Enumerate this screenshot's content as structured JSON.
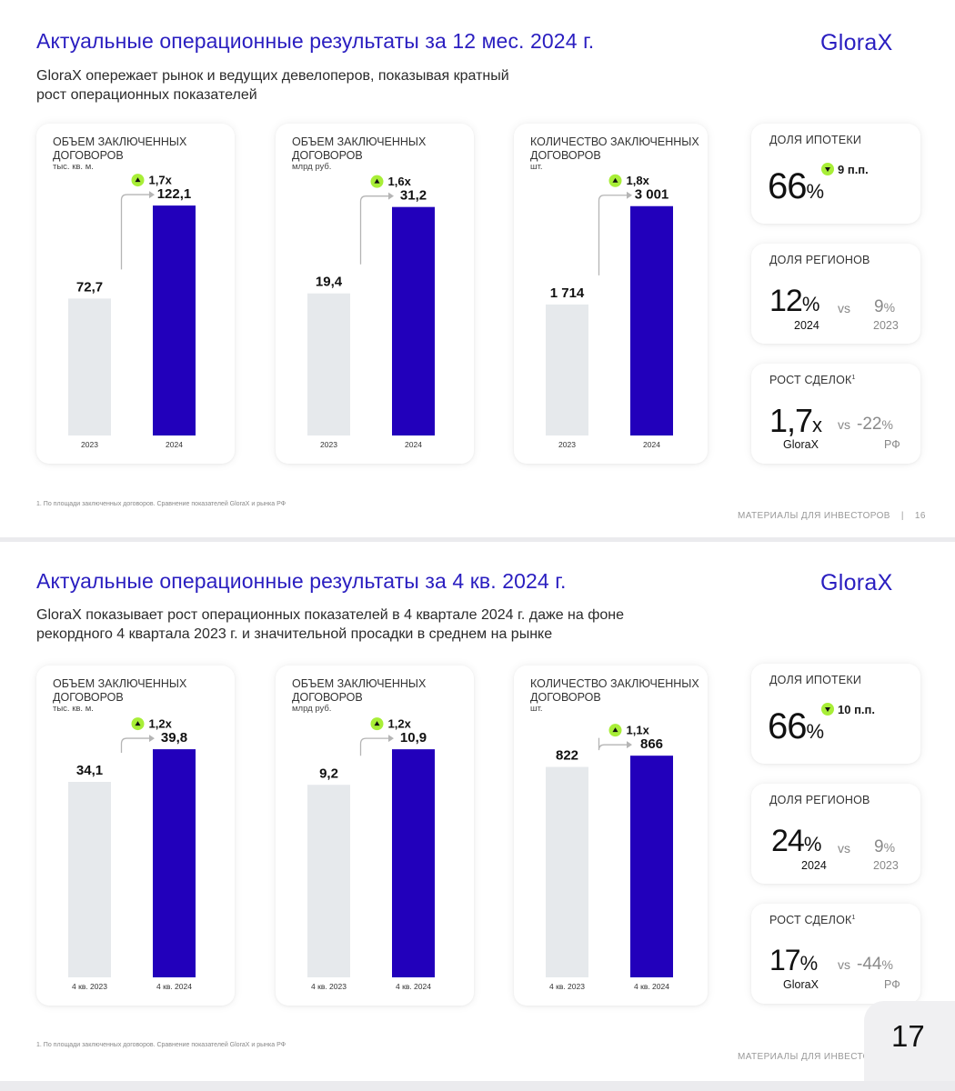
{
  "brand": {
    "logo": "GloraX"
  },
  "slides": [
    {
      "title": "Актуальные операционные результаты за 12 мес. 2024 г.",
      "subtitle_lines": [
        "GloraX опережает рынок и ведущих девелоперов, показывая кратный",
        "рост операционных показателей"
      ],
      "kpis": {
        "mortgage": {
          "label": "ДОЛЯ ИПОТЕКИ",
          "value": "66",
          "unit": "%",
          "delta": "9 п.п."
        },
        "regions": {
          "label": "ДОЛЯ РЕГИОНОВ",
          "value": "12",
          "unit": "%",
          "year": "2024",
          "vs": "vs",
          "compare_value": "9",
          "compare_unit": "%",
          "compare_year": "2023"
        },
        "deals": {
          "label": "РОСТ СДЕЛОК",
          "footnote_mark": "1",
          "value": "1,7",
          "unit": "x",
          "caption": "GloraX",
          "vs": "vs",
          "compare_value": "-22",
          "compare_unit": "%",
          "compare_caption": "РФ"
        }
      },
      "footnote": "1. По площади заключенных договоров. Сравнение показателей GloraX и рынка РФ",
      "footer": "МАТЕРИАЛЫ ДЛЯ ИНВЕСТОРОВ",
      "footer_sep": "|",
      "page": "16"
    },
    {
      "title": "Актуальные операционные результаты за 4 кв. 2024 г.",
      "subtitle_lines": [
        "GloraX показывает рост операционных показателей в 4 квартале 2024 г. даже на фоне",
        "рекордного 4 квартала 2023 г. и значительной просадки в среднем на рынке"
      ],
      "kpis": {
        "mortgage": {
          "label": "ДОЛЯ ИПОТЕКИ",
          "value": "66",
          "unit": "%",
          "delta": "10 п.п."
        },
        "regions": {
          "label": "ДОЛЯ РЕГИОНОВ",
          "value": "24",
          "unit": "%",
          "year": "2024",
          "vs": "vs",
          "compare_value": "9",
          "compare_unit": "%",
          "compare_year": "2023"
        },
        "deals": {
          "label": "РОСТ СДЕЛОК",
          "footnote_mark": "1",
          "value": "17",
          "unit": "%",
          "caption": "GloraX",
          "vs": "vs",
          "compare_value": "-44",
          "compare_unit": "%",
          "compare_caption": "РФ"
        }
      },
      "footnote": "1. По площади заключенных договоров. Сравнение показателей GloraX и рынка РФ",
      "footer": "МАТЕРИАЛЫ ДЛЯ ИНВЕСТОР",
      "page": "17"
    }
  ],
  "colors": {
    "accent": "#2a1ec0",
    "bar_current": "#2200bb",
    "bar_previous": "#e6e9ec",
    "badge": "#a8ee37",
    "title": "#2a1ec0"
  },
  "chart_data": [
    {
      "type": "bar",
      "title_lines": [
        "ОБЪЕМ ЗАКЛЮЧЕННЫХ",
        "ДОГОВОРОВ"
      ],
      "unit": "тыс. кв. м.",
      "categories": [
        "2023",
        "2024"
      ],
      "values": [
        72.7,
        122.1
      ],
      "value_labels": [
        "72,7",
        "122,1"
      ],
      "growth": "1,7х",
      "ylim": [
        0,
        140
      ]
    },
    {
      "type": "bar",
      "title_lines": [
        "ОБЪЕМ ЗАКЛЮЧЕННЫХ",
        "ДОГОВОРОВ"
      ],
      "unit": "млрд руб.",
      "categories": [
        "2023",
        "2024"
      ],
      "values": [
        19.4,
        31.2
      ],
      "value_labels": [
        "19,4",
        "31,2"
      ],
      "growth": "1,6х",
      "ylim": [
        0,
        36
      ]
    },
    {
      "type": "bar",
      "title_lines": [
        "КОЛИЧЕСТВО ЗАКЛЮЧЕННЫХ",
        "ДОГОВОРОВ"
      ],
      "unit": "шт.",
      "categories": [
        "2023",
        "2024"
      ],
      "values": [
        1714,
        3001
      ],
      "value_labels": [
        "1 714",
        "3 001"
      ],
      "growth": "1,8х",
      "ylim": [
        0,
        3450
      ]
    },
    {
      "type": "bar",
      "title_lines": [
        "ОБЪЕМ ЗАКЛЮЧЕННЫХ",
        "ДОГОВОРОВ"
      ],
      "unit": "тыс. кв. м.",
      "categories": [
        "4 кв. 2023",
        "4 кв. 2024"
      ],
      "values": [
        34.1,
        39.8
      ],
      "value_labels": [
        "34,1",
        "39,8"
      ],
      "growth": "1,2х",
      "ylim": [
        0,
        46
      ]
    },
    {
      "type": "bar",
      "title_lines": [
        "ОБЪЕМ ЗАКЛЮЧЕННЫХ",
        "ДОГОВОРОВ"
      ],
      "unit": "млрд руб.",
      "categories": [
        "4 кв. 2023",
        "4 кв. 2024"
      ],
      "values": [
        9.2,
        10.9
      ],
      "value_labels": [
        "9,2",
        "10,9"
      ],
      "growth": "1,2х",
      "ylim": [
        0,
        12.6
      ]
    },
    {
      "type": "bar",
      "title_lines": [
        "КОЛИЧЕСТВО ЗАКЛЮЧЕННЫХ",
        "ДОГОВОРОВ"
      ],
      "unit": "шт.",
      "categories": [
        "4 кв. 2023",
        "4 кв. 2024"
      ],
      "values": [
        822,
        866
      ],
      "value_labels": [
        "822",
        "866"
      ],
      "growth": "1,1х",
      "ylim": [
        0,
        1030
      ]
    }
  ]
}
